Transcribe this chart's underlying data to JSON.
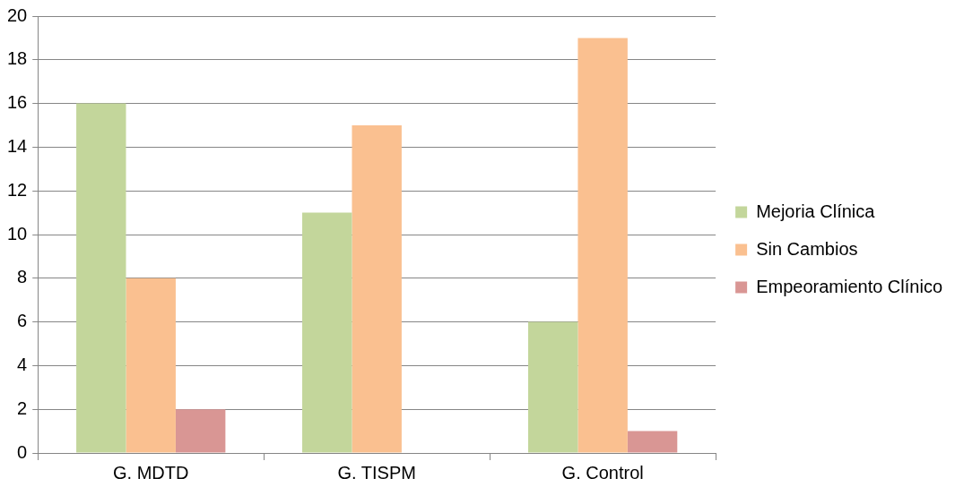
{
  "chart_data": {
    "type": "bar",
    "categories": [
      "G. MDTD",
      "G. TISPM",
      "G. Control"
    ],
    "series": [
      {
        "name": "Mejoria Clínica",
        "color": "#c3d69b",
        "values": [
          16,
          11,
          6
        ]
      },
      {
        "name": "Sin Cambios",
        "color": "#fac090",
        "values": [
          8,
          15,
          19
        ]
      },
      {
        "name": "Empeoramiento Clínico",
        "color": "#d99694",
        "values": [
          2,
          0,
          1
        ]
      }
    ],
    "ylim": [
      0,
      20
    ],
    "yticks": [
      0,
      2,
      4,
      6,
      8,
      10,
      12,
      14,
      16,
      18,
      20
    ],
    "grid": "y",
    "legend": "right"
  }
}
